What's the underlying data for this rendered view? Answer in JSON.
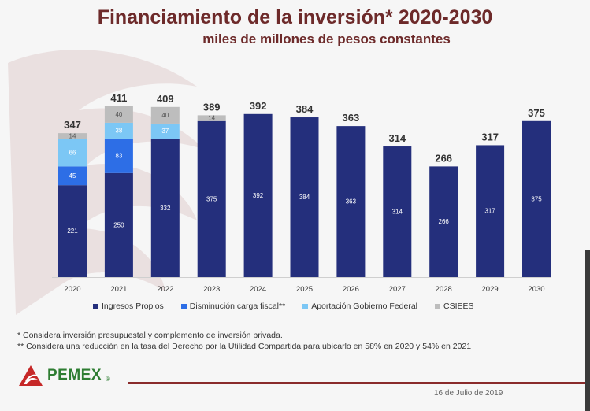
{
  "title": "Financiamiento de la inversión* 2020-2030",
  "subtitle": "miles de millones de pesos constantes",
  "colors": {
    "ingresos": "#242f7c",
    "disminucion": "#2d6ee6",
    "aportacion": "#7cc7f5",
    "csiees": "#bdbdbd",
    "title": "#6d2a2a",
    "brand_green": "#2e7d32",
    "brand_red": "#c62828"
  },
  "chart_data": {
    "type": "bar",
    "stacked": true,
    "categories": [
      "2020",
      "2021",
      "2022",
      "2023",
      "2024",
      "2025",
      "2026",
      "2027",
      "2028",
      "2029",
      "2030"
    ],
    "series": [
      {
        "name": "Ingresos Propios",
        "color": "#242f7c",
        "values": [
          221,
          250,
          332,
          375,
          392,
          384,
          363,
          314,
          266,
          317,
          375
        ]
      },
      {
        "name": "Disminución carga fiscal**",
        "color": "#2d6ee6",
        "values": [
          45,
          83,
          0,
          0,
          0,
          0,
          0,
          0,
          0,
          0,
          0
        ]
      },
      {
        "name": "Aportación Gobierno Federal",
        "color": "#7cc7f5",
        "values": [
          66,
          38,
          37,
          0,
          0,
          0,
          0,
          0,
          0,
          0,
          0
        ]
      },
      {
        "name": "CSIEES",
        "color": "#bdbdbd",
        "values": [
          14,
          40,
          40,
          14,
          0,
          0,
          0,
          0,
          0,
          0,
          0
        ]
      }
    ],
    "totals": [
      347,
      411,
      409,
      389,
      392,
      384,
      363,
      314,
      266,
      317,
      375
    ],
    "ylim": [
      0,
      420
    ],
    "grid": false,
    "legend_position": "bottom"
  },
  "notes": [
    "* Considera inversión presupuestal y complemento de inversión privada.",
    "** Considera una reducción en la tasa del Derecho por la Utilidad Compartida para ubicarlo en 58% en 2020 y 54% en 2021"
  ],
  "logo": {
    "text": "PEMEX",
    "reg": "®"
  },
  "date": "16 de Julio de 2019"
}
